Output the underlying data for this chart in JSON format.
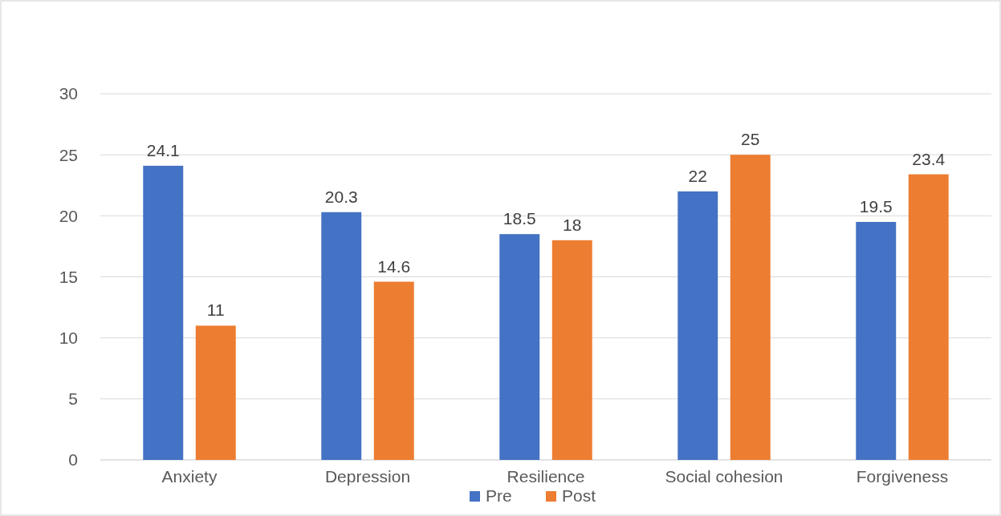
{
  "chart_data": {
    "type": "bar",
    "categories": [
      "Anxiety",
      "Depression",
      "Resilience",
      "Social cohesion",
      "Forgiveness"
    ],
    "series": [
      {
        "name": "Pre",
        "color": "#4472c4",
        "values": [
          24.1,
          20.3,
          18.5,
          22,
          19.5
        ]
      },
      {
        "name": "Post",
        "color": "#ed7d31",
        "values": [
          11,
          14.6,
          18,
          25,
          23.4
        ]
      }
    ],
    "ylim": [
      0,
      30
    ],
    "yticks": [
      0,
      5,
      10,
      15,
      20,
      25,
      30
    ],
    "grid": "y",
    "legend": "bottom",
    "data_labels": true
  }
}
